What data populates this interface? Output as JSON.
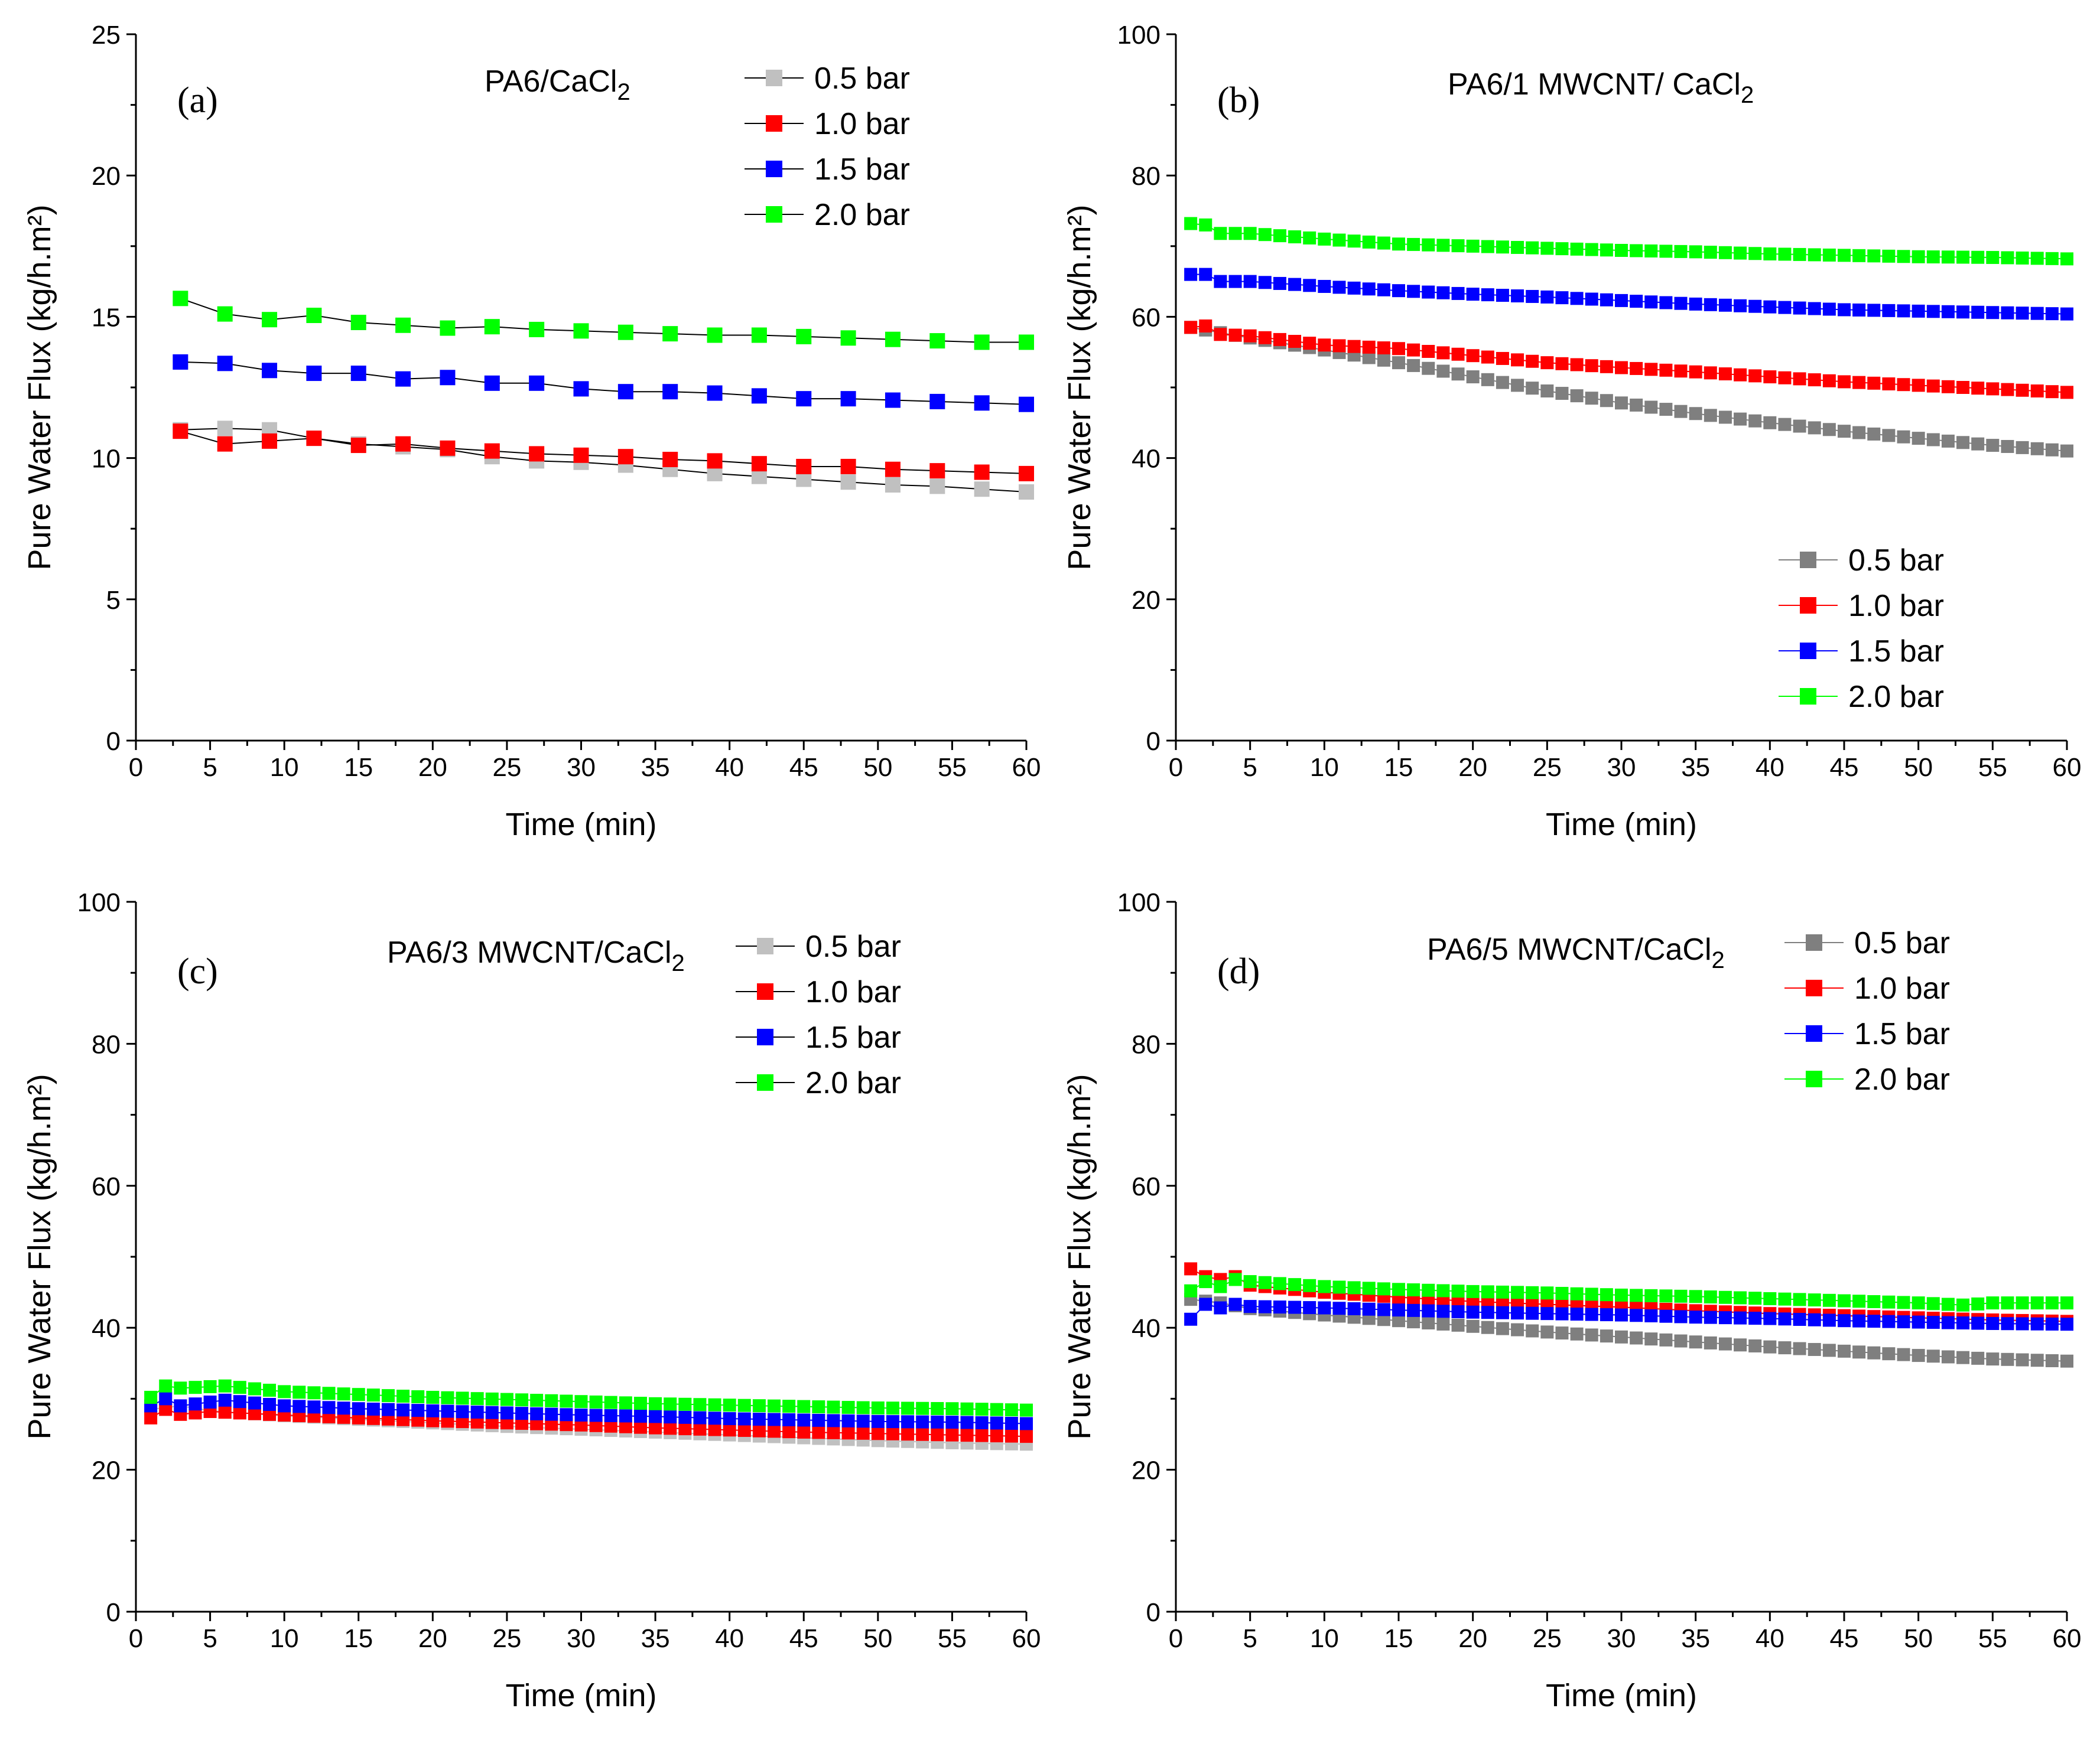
{
  "figure": {
    "xlabel": "Time (min)",
    "ylabel": "Pure Water Flux (kg/h.m²)"
  },
  "colors": {
    "0.5 bar": "#c0c0c0",
    "0.5 bar dark": "#7f7f7f",
    "1.0 bar": "#ff0000",
    "1.5 bar": "#0000ff",
    "2.0 bar": "#00ff00"
  },
  "chart_data": [
    {
      "panel": "(a)",
      "title": "PA6/CaCl",
      "title_sub": "2",
      "type": "line",
      "xlabel": "Time (min)",
      "ylabel": "Pure Water Flux (kg/h.m²)",
      "xlim": [
        0,
        60
      ],
      "ylim": [
        0,
        25
      ],
      "xticks": [
        0,
        5,
        10,
        15,
        20,
        25,
        30,
        35,
        40,
        45,
        50,
        55,
        60
      ],
      "yticks": [
        0,
        5,
        10,
        15,
        20,
        25
      ],
      "legend": {
        "position": "top-right",
        "labels": [
          "0.5 bar",
          "1.0 bar",
          "1.5 bar",
          "2.0 bar"
        ]
      },
      "x": [
        3,
        6,
        9,
        12,
        15,
        18,
        21,
        24,
        27,
        30,
        33,
        36,
        39,
        42,
        45,
        48,
        51,
        54,
        57,
        60
      ],
      "series": [
        {
          "name": "0.5 bar",
          "color": "#c0c0c0",
          "values": [
            11.0,
            11.05,
            11.0,
            10.7,
            10.5,
            10.4,
            10.3,
            10.05,
            9.9,
            9.85,
            9.75,
            9.6,
            9.45,
            9.35,
            9.25,
            9.15,
            9.05,
            9.0,
            8.9,
            8.8
          ]
        },
        {
          "name": "1.0 bar",
          "color": "#ff0000",
          "values": [
            10.95,
            10.5,
            10.6,
            10.7,
            10.45,
            10.5,
            10.35,
            10.25,
            10.15,
            10.1,
            10.05,
            9.95,
            9.9,
            9.8,
            9.7,
            9.7,
            9.6,
            9.55,
            9.5,
            9.45
          ]
        },
        {
          "name": "1.5 bar",
          "color": "#0000ff",
          "values": [
            13.4,
            13.35,
            13.1,
            13.0,
            13.0,
            12.8,
            12.85,
            12.65,
            12.65,
            12.45,
            12.35,
            12.35,
            12.3,
            12.2,
            12.1,
            12.1,
            12.05,
            12.0,
            11.95,
            11.9
          ]
        },
        {
          "name": "2.0 bar",
          "color": "#00ff00",
          "values": [
            15.65,
            15.1,
            14.9,
            15.05,
            14.8,
            14.7,
            14.6,
            14.65,
            14.55,
            14.5,
            14.45,
            14.4,
            14.35,
            14.35,
            14.3,
            14.25,
            14.2,
            14.15,
            14.1,
            14.1
          ]
        }
      ]
    },
    {
      "panel": "(b)",
      "title": "PA6/1 MWCNT/ CaCl",
      "title_sub": "2",
      "type": "line",
      "xlabel": "Time (min)",
      "ylabel": "Pure Water Flux (kg/h.m²)",
      "xlim": [
        0,
        60
      ],
      "ylim": [
        0,
        100
      ],
      "xticks": [
        0,
        5,
        10,
        15,
        20,
        25,
        30,
        35,
        40,
        45,
        50,
        55,
        60
      ],
      "yticks": [
        0,
        20,
        40,
        60,
        80,
        100
      ],
      "legend": {
        "position": "lower-right",
        "labels": [
          "0.5 bar",
          "1.0 bar",
          "1.5 bar",
          "2.0 bar"
        ]
      },
      "x_start": 1,
      "x_end": 60,
      "x_step": 1,
      "series": [
        {
          "name": "0.5 bar",
          "color": "#7f7f7f",
          "anchors": [
            [
              1,
              58.5
            ],
            [
              5,
              57
            ],
            [
              10,
              55.3
            ],
            [
              15,
              53.5
            ],
            [
              20,
              51.5
            ],
            [
              25,
              49.5
            ],
            [
              30,
              47.8
            ],
            [
              35,
              46.3
            ],
            [
              40,
              45.0
            ],
            [
              45,
              43.8
            ],
            [
              50,
              42.8
            ],
            [
              55,
              41.8
            ],
            [
              60,
              41.0
            ]
          ]
        },
        {
          "name": "1.0 bar",
          "color": "#ff0000",
          "anchors": [
            [
              1,
              58.5
            ],
            [
              2,
              58.7
            ],
            [
              3,
              57.5
            ],
            [
              5,
              57.3
            ],
            [
              10,
              56
            ],
            [
              15,
              55.5
            ],
            [
              20,
              54.5
            ],
            [
              25,
              53.5
            ],
            [
              30,
              52.8
            ],
            [
              35,
              52.2
            ],
            [
              40,
              51.5
            ],
            [
              45,
              50.8
            ],
            [
              50,
              50.3
            ],
            [
              55,
              49.8
            ],
            [
              60,
              49.3
            ]
          ]
        },
        {
          "name": "1.5 bar",
          "color": "#0000ff",
          "anchors": [
            [
              1,
              66
            ],
            [
              2,
              66
            ],
            [
              3,
              65
            ],
            [
              5,
              65
            ],
            [
              10,
              64.3
            ],
            [
              15,
              63.7
            ],
            [
              20,
              63.2
            ],
            [
              25,
              62.8
            ],
            [
              30,
              62.3
            ],
            [
              35,
              61.8
            ],
            [
              40,
              61.4
            ],
            [
              45,
              61.0
            ],
            [
              50,
              60.8
            ],
            [
              55,
              60.6
            ],
            [
              60,
              60.4
            ]
          ]
        },
        {
          "name": "2.0 bar",
          "color": "#00ff00",
          "anchors": [
            [
              1,
              73.2
            ],
            [
              2,
              73
            ],
            [
              3,
              71.8
            ],
            [
              5,
              71.8
            ],
            [
              10,
              71
            ],
            [
              15,
              70.3
            ],
            [
              20,
              70
            ],
            [
              25,
              69.7
            ],
            [
              30,
              69.4
            ],
            [
              35,
              69.2
            ],
            [
              40,
              68.9
            ],
            [
              45,
              68.7
            ],
            [
              50,
              68.5
            ],
            [
              55,
              68.4
            ],
            [
              60,
              68.2
            ]
          ]
        }
      ]
    },
    {
      "panel": "(c)",
      "title": "PA6/3 MWCNT/CaCl",
      "title_sub": "2",
      "type": "line",
      "xlabel": "Time (min)",
      "ylabel": "Pure Water Flux (kg/h.m²)",
      "xlim": [
        0,
        60
      ],
      "ylim": [
        0,
        100
      ],
      "xticks": [
        0,
        5,
        10,
        15,
        20,
        25,
        30,
        35,
        40,
        45,
        50,
        55,
        60
      ],
      "yticks": [
        0,
        20,
        40,
        60,
        80,
        100
      ],
      "legend": {
        "position": "top-right",
        "labels": [
          "0.5 bar",
          "1.0 bar",
          "1.5 bar",
          "2.0 bar"
        ]
      },
      "x_start": 1,
      "x_end": 60,
      "x_step": 1,
      "series": [
        {
          "name": "0.5 bar",
          "color": "#c0c0c0",
          "anchors": [
            [
              1,
              28.5
            ],
            [
              3,
              29
            ],
            [
              5,
              28.3
            ],
            [
              10,
              27.6
            ],
            [
              15,
              27.1
            ],
            [
              20,
              26.6
            ],
            [
              25,
              26.1
            ],
            [
              30,
              25.7
            ],
            [
              35,
              25.3
            ],
            [
              40,
              24.9
            ],
            [
              45,
              24.5
            ],
            [
              50,
              24.1
            ],
            [
              55,
              23.8
            ],
            [
              60,
              23.6
            ]
          ]
        },
        {
          "name": "1.0 bar",
          "color": "#ff0000",
          "anchors": [
            [
              1,
              27.3
            ],
            [
              2,
              28.5
            ],
            [
              3,
              27.8
            ],
            [
              5,
              28.2
            ],
            [
              10,
              27.7
            ],
            [
              15,
              27.3
            ],
            [
              20,
              26.9
            ],
            [
              25,
              26.6
            ],
            [
              30,
              26.3
            ],
            [
              35,
              25.9
            ],
            [
              40,
              25.6
            ],
            [
              45,
              25.3
            ],
            [
              50,
              25.1
            ],
            [
              55,
              24.9
            ],
            [
              60,
              24.7
            ]
          ]
        },
        {
          "name": "1.5 bar",
          "color": "#0000ff",
          "anchors": [
            [
              1,
              29
            ],
            [
              2,
              30
            ],
            [
              3,
              29
            ],
            [
              6,
              29.8
            ],
            [
              10,
              29
            ],
            [
              15,
              28.6
            ],
            [
              20,
              28.3
            ],
            [
              25,
              28
            ],
            [
              30,
              27.7
            ],
            [
              35,
              27.5
            ],
            [
              40,
              27.2
            ],
            [
              45,
              27
            ],
            [
              50,
              26.8
            ],
            [
              55,
              26.7
            ],
            [
              60,
              26.5
            ]
          ]
        },
        {
          "name": "2.0 bar",
          "color": "#00ff00",
          "anchors": [
            [
              1,
              30.2
            ],
            [
              2,
              31.8
            ],
            [
              3,
              31.5
            ],
            [
              6,
              31.8
            ],
            [
              10,
              31
            ],
            [
              15,
              30.6
            ],
            [
              20,
              30.2
            ],
            [
              25,
              29.9
            ],
            [
              30,
              29.6
            ],
            [
              35,
              29.3
            ],
            [
              40,
              29.1
            ],
            [
              45,
              28.9
            ],
            [
              50,
              28.7
            ],
            [
              55,
              28.6
            ],
            [
              60,
              28.4
            ]
          ]
        }
      ]
    },
    {
      "panel": "(d)",
      "title": "PA6/5 MWCNT/CaCl",
      "title_sub": "2",
      "type": "line",
      "xlabel": "Time (min)",
      "ylabel": "Pure Water Flux (kg/h.m²)",
      "xlim": [
        0,
        60
      ],
      "ylim": [
        0,
        100
      ],
      "xticks": [
        0,
        5,
        10,
        15,
        20,
        25,
        30,
        35,
        40,
        45,
        50,
        55,
        60
      ],
      "yticks": [
        0,
        20,
        40,
        60,
        80,
        100
      ],
      "legend": {
        "position": "top-right",
        "labels": [
          "0.5 bar",
          "1.0 bar",
          "1.5 bar",
          "2.0 bar"
        ]
      },
      "x_start": 1,
      "x_end": 60,
      "x_step": 1,
      "series": [
        {
          "name": "0.5 bar",
          "color": "#7f7f7f",
          "anchors": [
            [
              1,
              44
            ],
            [
              3,
              43.5
            ],
            [
              5,
              42.7
            ],
            [
              10,
              41.8
            ],
            [
              15,
              41.0
            ],
            [
              20,
              40.2
            ],
            [
              25,
              39.4
            ],
            [
              30,
              38.7
            ],
            [
              35,
              38.0
            ],
            [
              40,
              37.3
            ],
            [
              45,
              36.7
            ],
            [
              50,
              36.1
            ],
            [
              55,
              35.6
            ],
            [
              60,
              35.3
            ]
          ]
        },
        {
          "name": "1.0 bar",
          "color": "#ff0000",
          "anchors": [
            [
              1,
              48.3
            ],
            [
              2,
              47.2
            ],
            [
              3,
              46.8
            ],
            [
              4,
              47.2
            ],
            [
              5,
              46
            ],
            [
              10,
              45
            ],
            [
              15,
              44.3
            ],
            [
              20,
              43.7
            ],
            [
              25,
              43.3
            ],
            [
              30,
              42.9
            ],
            [
              35,
              42.4
            ],
            [
              40,
              42
            ],
            [
              45,
              41.7
            ],
            [
              50,
              41.4
            ],
            [
              55,
              41.1
            ],
            [
              60,
              40.9
            ]
          ]
        },
        {
          "name": "1.5 bar",
          "color": "#0000ff",
          "anchors": [
            [
              1,
              41.2
            ],
            [
              2,
              43.3
            ],
            [
              3,
              42.8
            ],
            [
              4,
              43.3
            ],
            [
              5,
              43
            ],
            [
              10,
              42.8
            ],
            [
              15,
              42.5
            ],
            [
              20,
              42.2
            ],
            [
              25,
              42
            ],
            [
              30,
              41.8
            ],
            [
              35,
              41.5
            ],
            [
              40,
              41.3
            ],
            [
              45,
              41
            ],
            [
              50,
              40.8
            ],
            [
              55,
              40.6
            ],
            [
              60,
              40.5
            ]
          ]
        },
        {
          "name": "2.0 bar",
          "color": "#00ff00",
          "anchors": [
            [
              1,
              45.2
            ],
            [
              2,
              46.5
            ],
            [
              3,
              45.8
            ],
            [
              4,
              46.8
            ],
            [
              5,
              46.5
            ],
            [
              10,
              45.8
            ],
            [
              15,
              45.4
            ],
            [
              20,
              45.1
            ],
            [
              25,
              44.9
            ],
            [
              30,
              44.6
            ],
            [
              35,
              44.4
            ],
            [
              40,
              44.1
            ],
            [
              45,
              43.8
            ],
            [
              50,
              43.5
            ],
            [
              53,
              43.2
            ],
            [
              55,
              43.5
            ],
            [
              60,
              43.5
            ]
          ]
        }
      ]
    }
  ]
}
